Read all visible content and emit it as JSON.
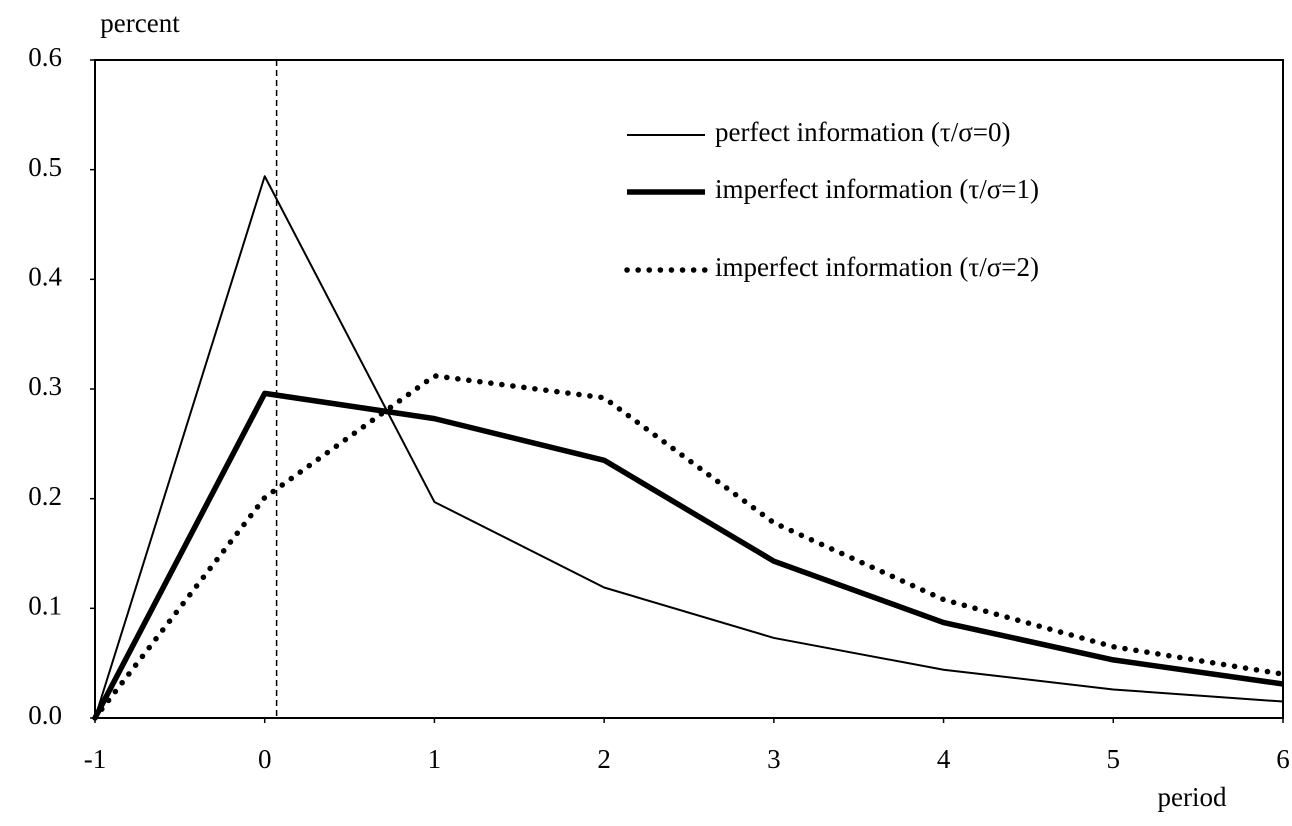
{
  "chart_data": {
    "type": "line",
    "ylabel": "percent",
    "xlabel": "period",
    "x": [
      -1,
      0,
      1,
      2,
      3,
      4,
      5,
      6
    ],
    "series": [
      {
        "name": "perfect information (τ/σ=0)",
        "color": "#000000",
        "style": "thin",
        "values": [
          0,
          0.494,
          0.197,
          0.119,
          0.073,
          0.044,
          0.026,
          0.015
        ]
      },
      {
        "name": "imperfect information (τ/σ=1)",
        "color": "#000000",
        "style": "thick",
        "values": [
          0,
          0.296,
          0.273,
          0.235,
          0.143,
          0.087,
          0.053,
          0.031
        ]
      },
      {
        "name": "imperfect information (τ/σ=2)",
        "color": "#000000",
        "style": "dotted",
        "values": [
          0,
          0.201,
          0.312,
          0.292,
          0.178,
          0.108,
          0.065,
          0.04
        ]
      }
    ],
    "vline_x": 0.07,
    "xlim": [
      -1,
      6
    ],
    "xticks": [
      -1,
      0,
      1,
      2,
      3,
      4,
      5,
      6
    ],
    "ylim": [
      0,
      0.6
    ],
    "yticks": [
      {
        "value": 0,
        "label": "0.0"
      },
      0.1,
      0.2,
      0.3,
      0.4,
      0.5,
      0.6
    ],
    "grid": false,
    "legend": "upper right"
  }
}
